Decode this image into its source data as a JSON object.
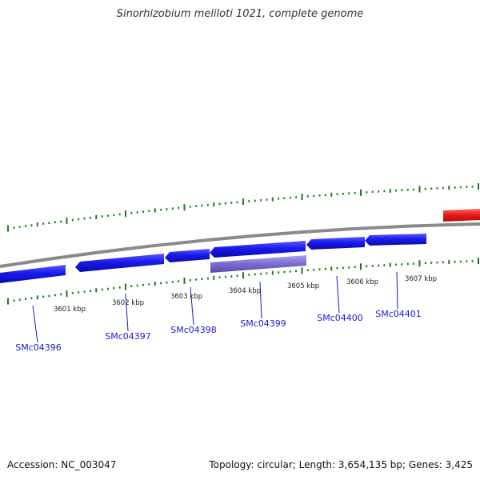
{
  "title": "Sinorhizobium meliloti 1021, complete genome",
  "footer": {
    "accession": "Accession: NC_003047",
    "summary": "Topology: circular; Length: 3,654,135 bp; Genes: 3,425"
  },
  "colors": {
    "gene_forward": "#1a1aee",
    "gene_highlight": "#7a6bd0",
    "gene_other_track": "#e81818",
    "backbone": "#8a8a8a",
    "ticks": "#1a7a1a",
    "gene_label": "#1a1acc",
    "tick_label": "#222222"
  },
  "scale": {
    "unit": "kbp",
    "labels": [
      "3601 kbp",
      "3602 kbp",
      "3603 kbp",
      "3604 kbp",
      "3605 kbp",
      "3606 kbp",
      "3607 kbp"
    ]
  },
  "genes": [
    {
      "name": "SMc04396",
      "labeled": true
    },
    {
      "name": "SMc04397",
      "labeled": true
    },
    {
      "name": "SMc04398",
      "labeled": true
    },
    {
      "name": "SMc04399",
      "labeled": true
    },
    {
      "name": "SMc04400",
      "labeled": true
    },
    {
      "name": "SMc04401",
      "labeled": true
    }
  ]
}
